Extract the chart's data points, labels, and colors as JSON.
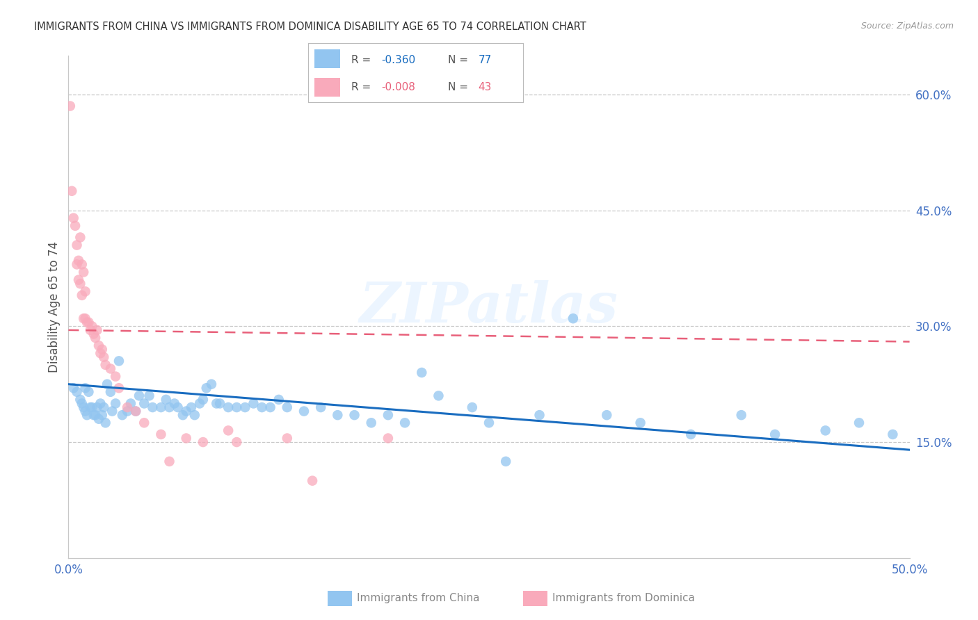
{
  "title": "IMMIGRANTS FROM CHINA VS IMMIGRANTS FROM DOMINICA DISABILITY AGE 65 TO 74 CORRELATION CHART",
  "source": "Source: ZipAtlas.com",
  "ylabel": "Disability Age 65 to 74",
  "xlim": [
    0.0,
    0.5
  ],
  "ylim": [
    0.0,
    0.65
  ],
  "xticks": [
    0.0,
    0.1,
    0.2,
    0.3,
    0.4,
    0.5
  ],
  "xticklabels": [
    "0.0%",
    "",
    "",
    "",
    "",
    "50.0%"
  ],
  "yticks_right": [
    0.15,
    0.3,
    0.45,
    0.6
  ],
  "ytick_labels_right": [
    "15.0%",
    "30.0%",
    "45.0%",
    "60.0%"
  ],
  "china_color": "#92C5F0",
  "dominica_color": "#F9AABB",
  "china_line_color": "#1A6DC0",
  "dominica_line_color": "#E8607A",
  "legend_r_china": "-0.360",
  "legend_n_china": "77",
  "legend_r_dominica": "-0.008",
  "legend_n_dominica": "43",
  "watermark": "ZIPatlas",
  "china_points_x": [
    0.003,
    0.005,
    0.007,
    0.008,
    0.009,
    0.01,
    0.01,
    0.011,
    0.012,
    0.013,
    0.014,
    0.015,
    0.016,
    0.017,
    0.018,
    0.019,
    0.02,
    0.021,
    0.022,
    0.023,
    0.025,
    0.026,
    0.028,
    0.03,
    0.032,
    0.035,
    0.037,
    0.04,
    0.042,
    0.045,
    0.048,
    0.05,
    0.055,
    0.058,
    0.06,
    0.063,
    0.065,
    0.068,
    0.07,
    0.073,
    0.075,
    0.078,
    0.08,
    0.082,
    0.085,
    0.088,
    0.09,
    0.095,
    0.1,
    0.105,
    0.11,
    0.115,
    0.12,
    0.125,
    0.13,
    0.14,
    0.15,
    0.16,
    0.17,
    0.18,
    0.19,
    0.2,
    0.21,
    0.22,
    0.24,
    0.25,
    0.26,
    0.28,
    0.3,
    0.32,
    0.34,
    0.37,
    0.4,
    0.42,
    0.45,
    0.47,
    0.49
  ],
  "china_points_y": [
    0.22,
    0.215,
    0.205,
    0.2,
    0.195,
    0.19,
    0.22,
    0.185,
    0.215,
    0.195,
    0.195,
    0.185,
    0.185,
    0.195,
    0.18,
    0.2,
    0.185,
    0.195,
    0.175,
    0.225,
    0.215,
    0.19,
    0.2,
    0.255,
    0.185,
    0.19,
    0.2,
    0.19,
    0.21,
    0.2,
    0.21,
    0.195,
    0.195,
    0.205,
    0.195,
    0.2,
    0.195,
    0.185,
    0.19,
    0.195,
    0.185,
    0.2,
    0.205,
    0.22,
    0.225,
    0.2,
    0.2,
    0.195,
    0.195,
    0.195,
    0.2,
    0.195,
    0.195,
    0.205,
    0.195,
    0.19,
    0.195,
    0.185,
    0.185,
    0.175,
    0.185,
    0.175,
    0.24,
    0.21,
    0.195,
    0.175,
    0.125,
    0.185,
    0.31,
    0.185,
    0.175,
    0.16,
    0.185,
    0.16,
    0.165,
    0.175,
    0.16
  ],
  "dominica_points_x": [
    0.001,
    0.002,
    0.003,
    0.004,
    0.005,
    0.005,
    0.006,
    0.006,
    0.007,
    0.007,
    0.008,
    0.008,
    0.009,
    0.009,
    0.01,
    0.01,
    0.011,
    0.012,
    0.013,
    0.014,
    0.015,
    0.016,
    0.017,
    0.018,
    0.019,
    0.02,
    0.021,
    0.022,
    0.025,
    0.028,
    0.03,
    0.035,
    0.04,
    0.045,
    0.055,
    0.06,
    0.07,
    0.08,
    0.095,
    0.1,
    0.13,
    0.145,
    0.19
  ],
  "dominica_points_y": [
    0.585,
    0.475,
    0.44,
    0.43,
    0.405,
    0.38,
    0.385,
    0.36,
    0.415,
    0.355,
    0.38,
    0.34,
    0.37,
    0.31,
    0.345,
    0.31,
    0.305,
    0.305,
    0.295,
    0.3,
    0.29,
    0.285,
    0.295,
    0.275,
    0.265,
    0.27,
    0.26,
    0.25,
    0.245,
    0.235,
    0.22,
    0.195,
    0.19,
    0.175,
    0.16,
    0.125,
    0.155,
    0.15,
    0.165,
    0.15,
    0.155,
    0.1,
    0.155
  ],
  "china_trend_x": [
    0.0,
    0.5
  ],
  "china_trend_y": [
    0.225,
    0.14
  ],
  "dominica_trend_x": [
    0.0,
    0.5
  ],
  "dominica_trend_y": [
    0.295,
    0.28
  ]
}
